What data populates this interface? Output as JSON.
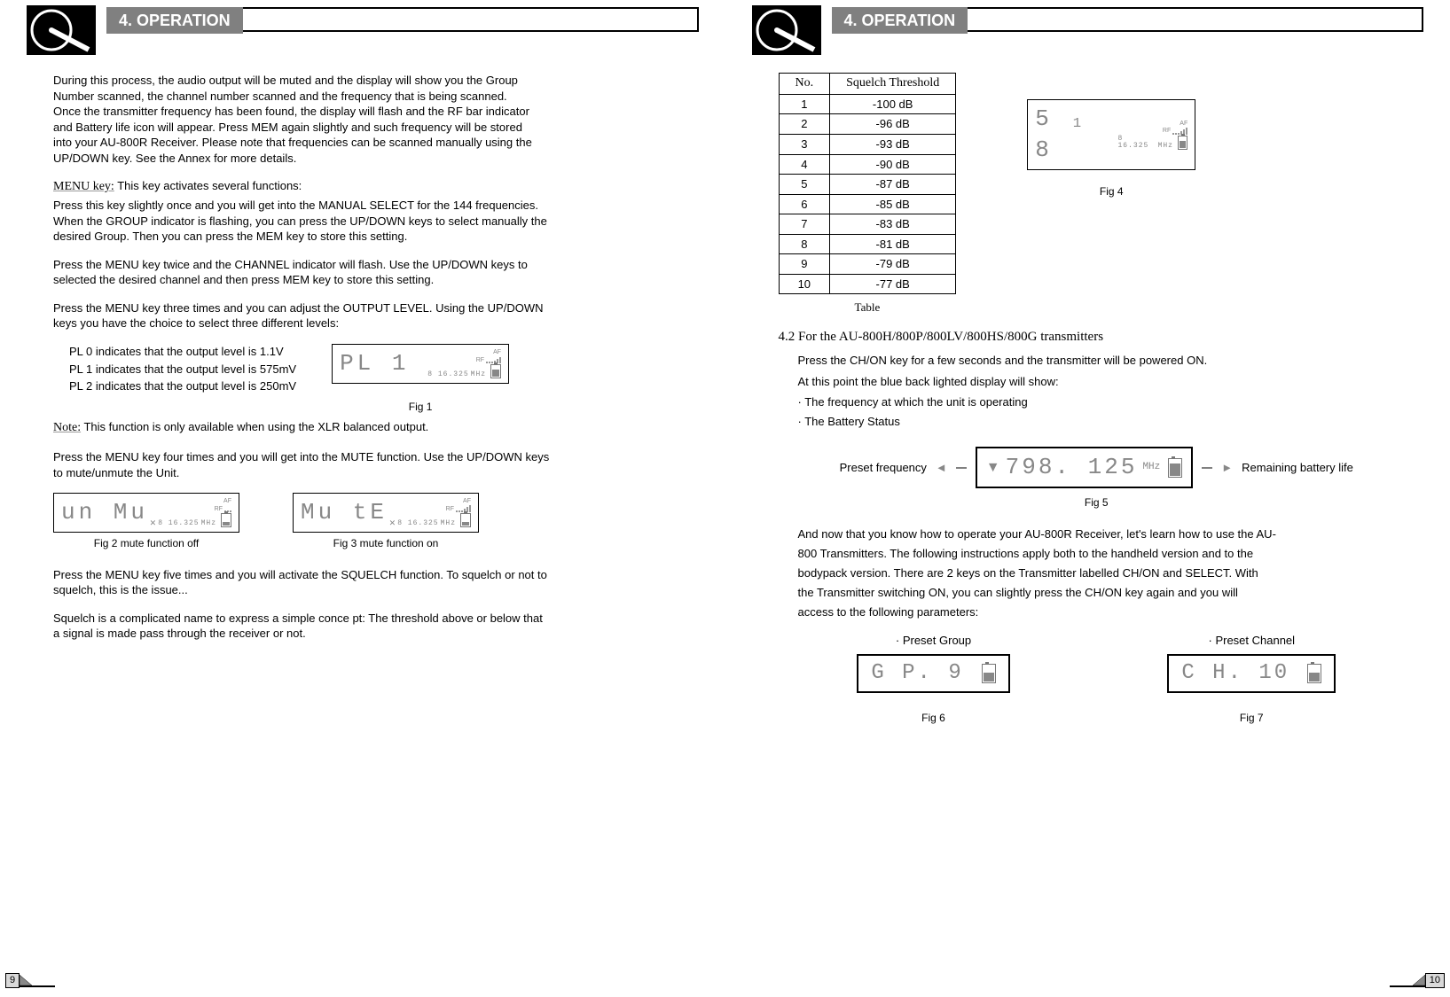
{
  "section_title": "4. OPERATION",
  "left": {
    "para1": "During this process, the audio output will be muted and the display will show you the Group Number scanned, the channel number scanned and the frequency that is being scanned. Once the transmitter frequency has been found, the display will flash and the RF bar indicator and Battery life icon will appear. Press MEM again slightly and such frequency will be stored into your AU-800R Receiver. Please note that frequencies can be scanned manually using the UP/DOWN key. See the Annex for more details.",
    "menu_key_label": "MENU key:",
    "menu_key_intro": " This key activates several functions:",
    "menu_key_p1": "Press this key slightly once and you will get into the MANUAL SELECT for the 144 frequencies. When the GROUP indicator is flashing, you can press the UP/DOWN keys to select manually the desired Group. Then you can press the MEM key to store this setting.",
    "menu_key_p2": "Press the MENU key twice and the CHANNEL indicator will flash. Use the UP/DOWN keys to selected the desired channel and then press MEM key to store this setting.",
    "menu_key_p3": "Press the MENU key three times and you can adjust the OUTPUT LEVEL. Using the UP/DOWN keys you have the choice to select three different levels:",
    "pl_list": [
      "PL 0 indicates that the output level is 1.1V",
      "PL 1 indicates that the output level is 575mV",
      "PL 2 indicates that the output level is 250mV"
    ],
    "fig1": {
      "main": "PL    1",
      "af": "AF",
      "rf": "RF",
      "freq": "8 16.325",
      "unit": "MHz",
      "caption": "Fig 1"
    },
    "note_label": "Note:",
    "note_text": " This function is only available when using the XLR balanced output.",
    "mute_para": "Press the MENU key four times and you will get into the MUTE function. Use the UP/DOWN keys to mute/unmute the Unit.",
    "fig2": {
      "main": "un Mu",
      "caption": "Fig 2  mute function off",
      "freq": "8 16.325",
      "unit": "MHz",
      "af": "AF",
      "rf": "RF"
    },
    "fig3": {
      "main": "Mu  tE",
      "caption": "Fig 3 mute function on",
      "freq": "8 16.325",
      "unit": "MHz",
      "af": "AF",
      "rf": "RF"
    },
    "squelch_p1": "Press the MENU key five times and you will activate the SQUELCH function. To squelch or not to squelch, this is the issue...",
    "squelch_p2": "Squelch is a complicated name to express a simple conce pt: The threshold above or below that a signal is made pass through the receiver or not.",
    "page_num": "9"
  },
  "right": {
    "table": {
      "header_no": "No.",
      "header_th": "Squelch Threshold",
      "rows": [
        {
          "no": "1",
          "v": "-100 dB"
        },
        {
          "no": "2",
          "v": "-96 dB"
        },
        {
          "no": "3",
          "v": "-93 dB"
        },
        {
          "no": "4",
          "v": "-90 dB"
        },
        {
          "no": "5",
          "v": "-87 dB"
        },
        {
          "no": "6",
          "v": "-85 dB"
        },
        {
          "no": "7",
          "v": "-83 dB"
        },
        {
          "no": "8",
          "v": "-81 dB"
        },
        {
          "no": "9",
          "v": "-79 dB"
        },
        {
          "no": "10",
          "v": "-77 dB"
        }
      ],
      "caption": "Table"
    },
    "fig4": {
      "main": "5 ₁ 8",
      "af": "AF",
      "rf": "RF",
      "freq": "8 16.325",
      "unit": "MHz",
      "caption": "Fig 4"
    },
    "sub_heading": "4.2 For the AU-800H/800P/800LV/800HS/800G transmitters",
    "tx_p1": "Press the CH/ON key for a few seconds and the transmitter will be powered ON.",
    "tx_p2": "At this point the blue back lighted display will show:",
    "tx_b1": "The frequency at which the unit is operating",
    "tx_b2": "The Battery Status",
    "fig5": {
      "left_label": "Preset frequency",
      "right_label": "Remaining battery life",
      "value": "798. 125",
      "unit": "MHz",
      "caption": "Fig 5"
    },
    "closing_p": "And now that you know how to operate your AU-800R Receiver, let's learn how to use the AU-800 Transmitters. The following instructions apply both to the handheld version and to the bodypack version. There are 2 keys on the Transmitter labelled CH/ON and SELECT. With the Transmitter switching ON, you can slightly press the CH/ON key again and you will access to the following parameters:",
    "preset_group_label": "Preset Group",
    "preset_channel_label": "Preset Channel",
    "fig6": {
      "main": "G P.   9",
      "caption": "Fig 6"
    },
    "fig7": {
      "main": "C H.  10",
      "caption": "Fig 7"
    },
    "page_num": "10"
  }
}
